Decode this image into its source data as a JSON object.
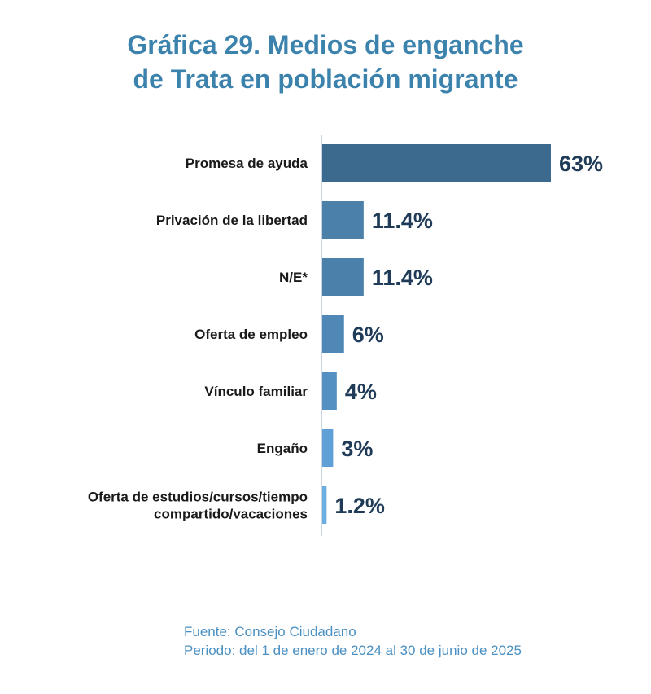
{
  "title_line1": "Gráfica 29. Medios de enganche",
  "title_line2": "de Trata en población migrante",
  "chart_data": {
    "type": "bar",
    "orientation": "horizontal",
    "categories": [
      [
        "Promesa de ayuda"
      ],
      [
        "Privación de la libertad"
      ],
      [
        "N/E*"
      ],
      [
        "Oferta de empleo"
      ],
      [
        "Vínculo familiar"
      ],
      [
        "Engaño"
      ],
      [
        "Oferta de estudios/cursos/tiempo",
        "compartido/vacaciones"
      ]
    ],
    "values": [
      63,
      11.4,
      11.4,
      6,
      4,
      3,
      1.2
    ],
    "value_labels": [
      "63%",
      "11.4%",
      "11.4%",
      "6%",
      "4%",
      "3%",
      "1.2%"
    ],
    "bar_colors": [
      "#3c6a8f",
      "#4a80a9",
      "#4a80a9",
      "#4f88b6",
      "#5590c2",
      "#5fa0d6",
      "#6aaee2"
    ],
    "value_label_color": "#1f3b57",
    "xlim": [
      0,
      63
    ],
    "grid": false,
    "legend": "none"
  },
  "source_line1": "Fuente: Consejo Ciudadano",
  "source_line2": "Periodo: del 1 de enero de 2024 al 30 de junio de 2025"
}
